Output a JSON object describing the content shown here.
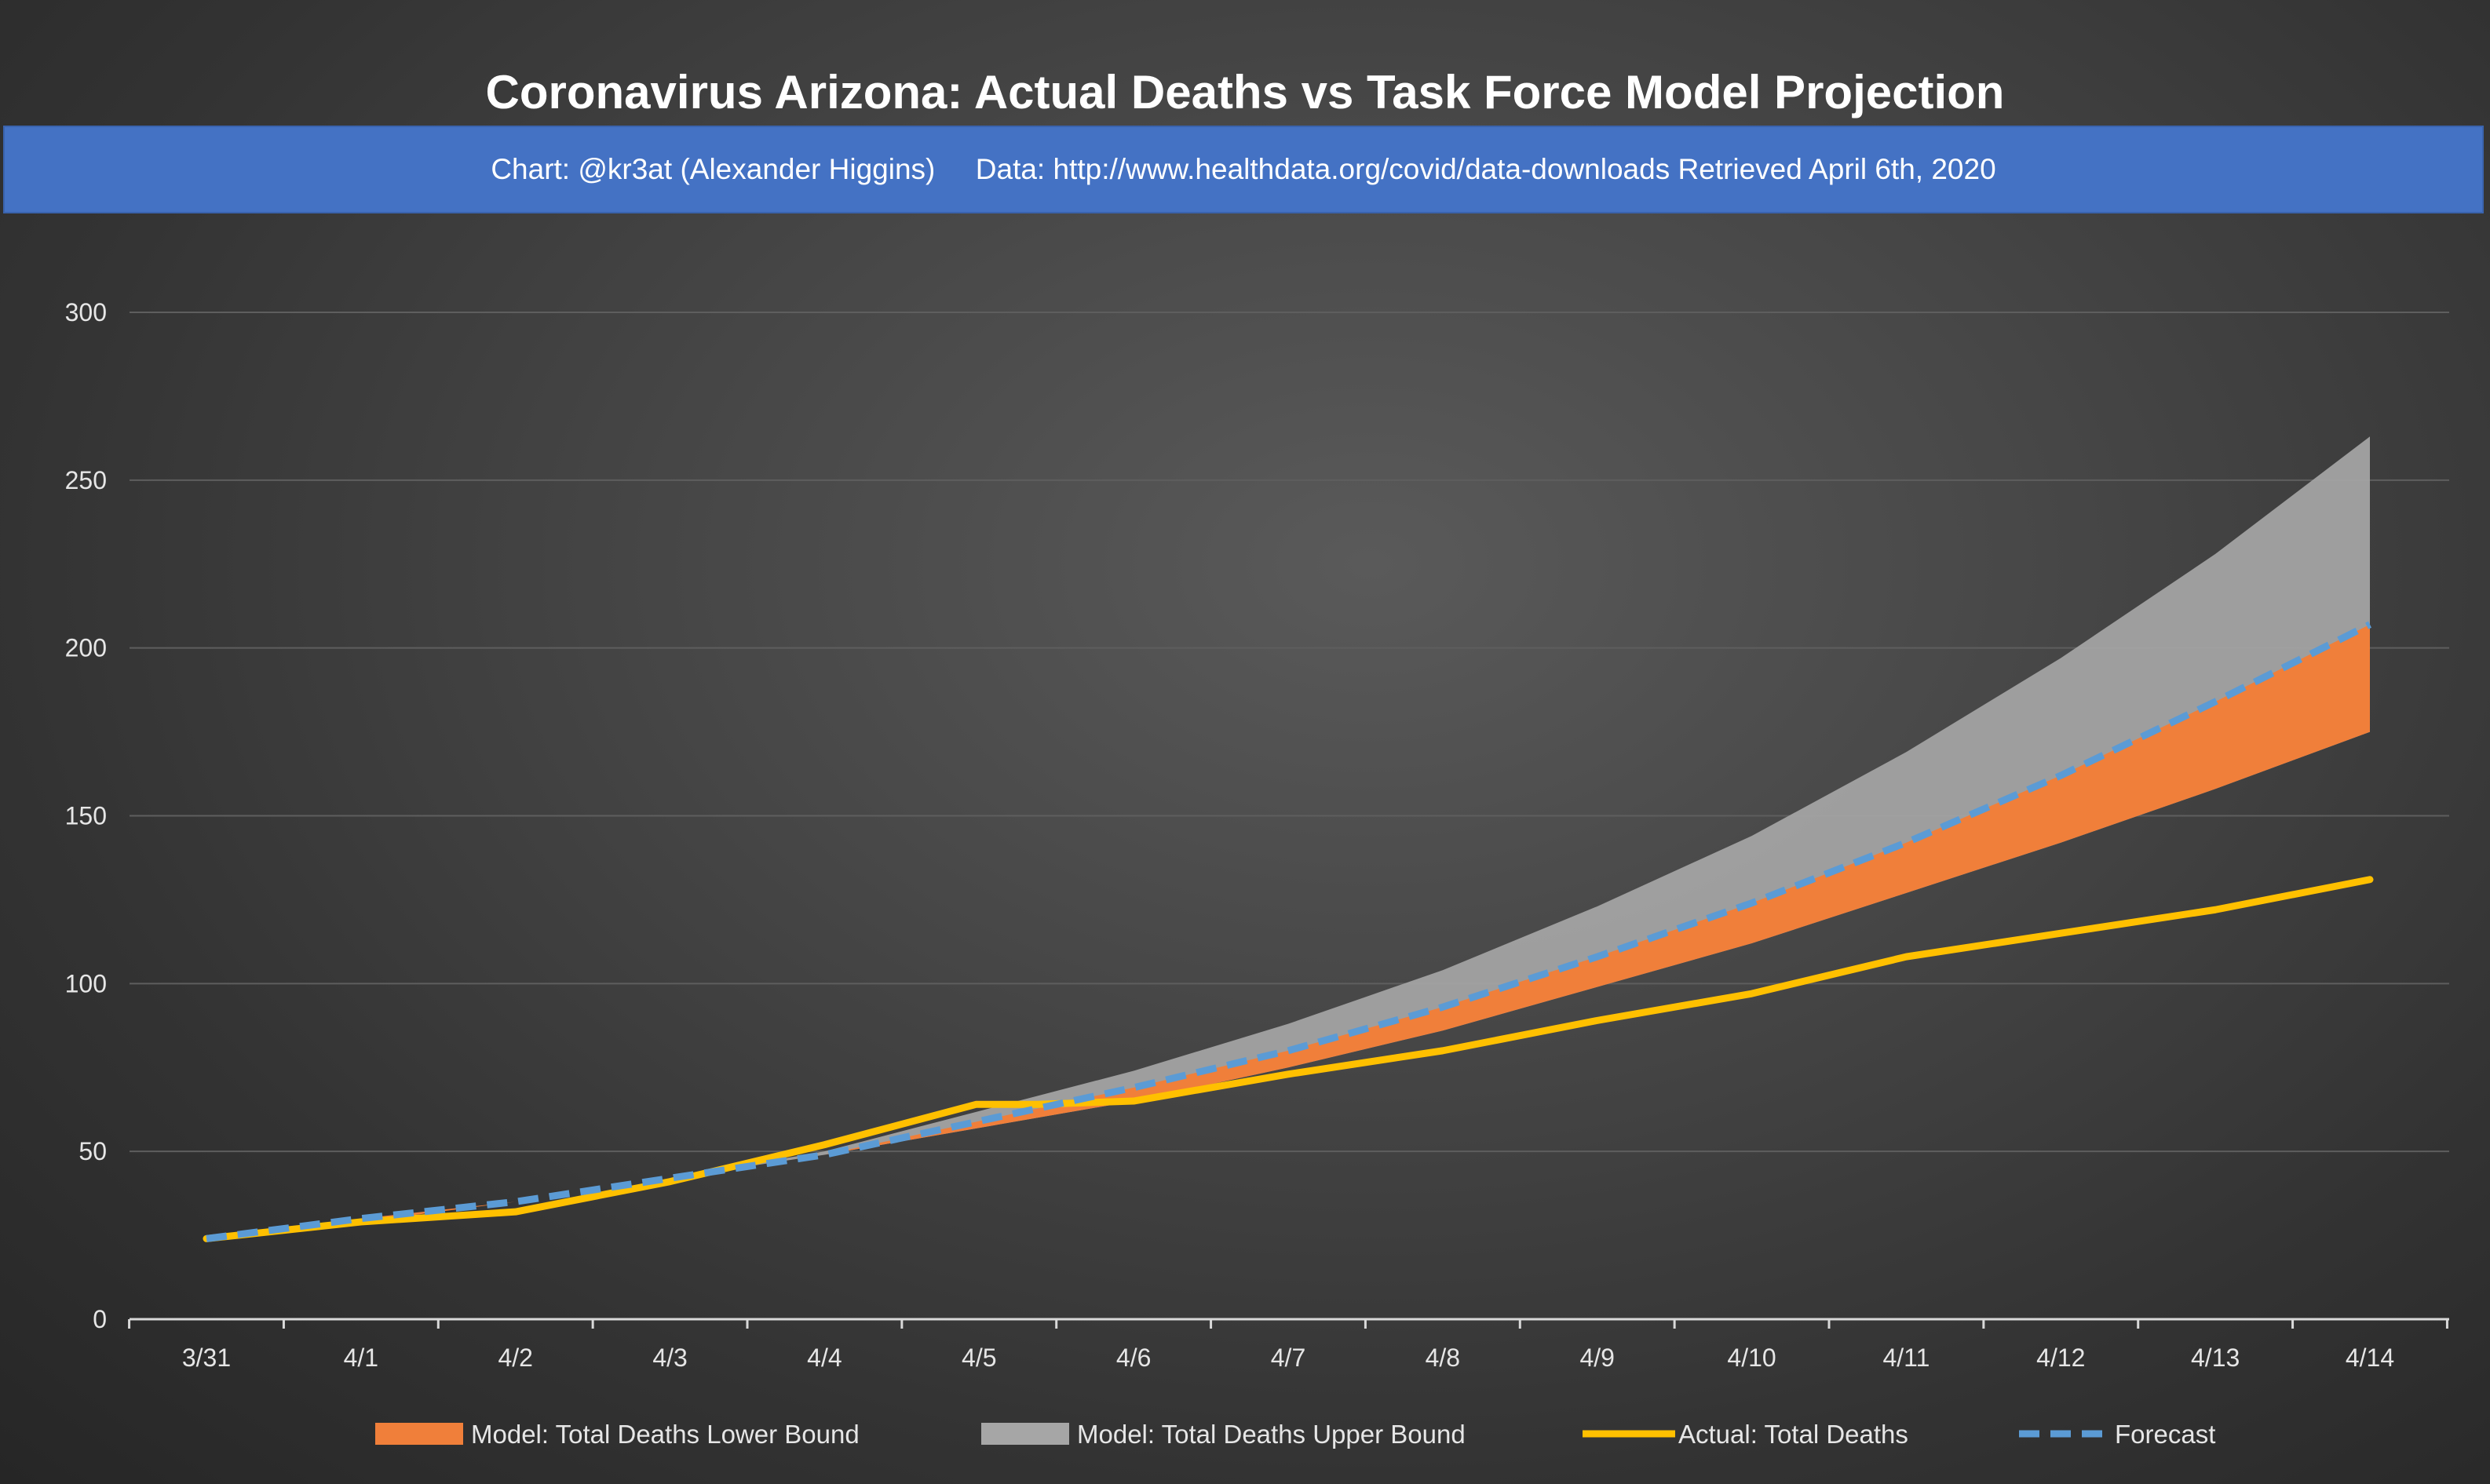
{
  "chart_data": {
    "type": "area",
    "title": "Coronavirus Arizona: Actual Deaths vs Task Force Model Projection",
    "subtitle": "Chart: @kr3at (Alexander Higgins)     Data: http://www.healthdata.org/covid/data-downloads Retrieved April 6th, 2020",
    "categories": [
      "3/31",
      "4/1",
      "4/2",
      "4/3",
      "4/4",
      "4/5",
      "4/6",
      "4/7",
      "4/8",
      "4/9",
      "4/10",
      "4/11",
      "4/12",
      "4/13",
      "4/14"
    ],
    "y_ticks": [
      "0",
      "50",
      "100",
      "150",
      "200",
      "250",
      "300"
    ],
    "ylim": [
      0,
      300
    ],
    "grid": true,
    "legend_position": "bottom",
    "series": [
      {
        "name": "Model: Total Deaths Lower Bound",
        "kind": "area",
        "color": "#f07f3a",
        "values": [
          24,
          29,
          35,
          42,
          49,
          57,
          65,
          75,
          86,
          99,
          112,
          127,
          142,
          158,
          175
        ]
      },
      {
        "name": "Model: Total Deaths Upper Bound",
        "kind": "area",
        "color": "#a6a6a6",
        "values": [
          24,
          29,
          35,
          42,
          50,
          62,
          74,
          88,
          104,
          123,
          144,
          169,
          197,
          228,
          263
        ]
      },
      {
        "name": "Actual: Total Deaths",
        "kind": "line",
        "color": "#ffc000",
        "x": [
          0,
          1,
          2,
          3,
          4,
          4.98,
          5.38,
          6,
          7,
          8,
          9,
          10,
          11,
          12,
          13,
          14
        ],
        "values": [
          24,
          29,
          32,
          41,
          52,
          64,
          64,
          65,
          73,
          80,
          89,
          97,
          108,
          115,
          122,
          131
        ]
      },
      {
        "name": "Forecast",
        "kind": "dashed-line",
        "color": "#5b9bd5",
        "values": [
          24,
          30,
          35,
          42,
          49,
          59,
          69,
          80,
          93,
          108,
          124,
          142,
          162,
          184,
          207
        ]
      }
    ]
  }
}
